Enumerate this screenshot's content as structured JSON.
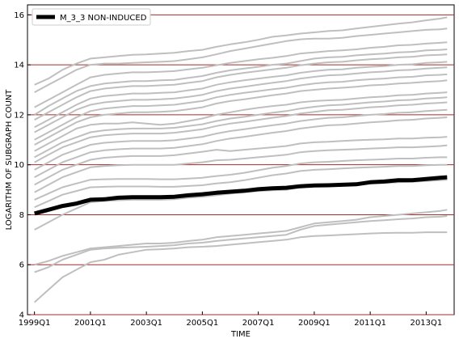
{
  "chart_data": {
    "type": "line",
    "title": "",
    "xlabel": "TIME",
    "ylabel": "LOGARITHM OF SUBGRAPH COUNT",
    "x_ticks": [
      "1999Q1",
      "2001Q1",
      "2003Q1",
      "2005Q1",
      "2007Q1",
      "2009Q1",
      "2011Q1",
      "2013Q1"
    ],
    "x_range": [
      "1999Q1",
      "2013Q4"
    ],
    "y_ticks": [
      4,
      6,
      8,
      10,
      12,
      14,
      16
    ],
    "ylim": [
      4,
      16.4
    ],
    "grid": "horizontal",
    "legend_position": "upper-left",
    "colors": {
      "highlight": "#000000",
      "background": "#bfbfbf",
      "grid": "#a52a2a"
    },
    "x_quarters": [
      "1999Q1",
      "1999Q3",
      "2000Q1",
      "2000Q3",
      "2001Q1",
      "2001Q3",
      "2002Q1",
      "2002Q3",
      "2003Q1",
      "2003Q3",
      "2004Q1",
      "2004Q3",
      "2005Q1",
      "2005Q3",
      "2006Q1",
      "2006Q3",
      "2007Q1",
      "2007Q3",
      "2008Q1",
      "2008Q3",
      "2009Q1",
      "2009Q3",
      "2010Q1",
      "2010Q3",
      "2011Q1",
      "2011Q3",
      "2012Q1",
      "2012Q3",
      "2013Q1",
      "2013Q3",
      "2013Q4"
    ],
    "highlight_series": {
      "name": "M_3_3 NON-INDUCED",
      "values": [
        8.05,
        8.2,
        8.35,
        8.45,
        8.6,
        8.62,
        8.68,
        8.7,
        8.7,
        8.7,
        8.72,
        8.78,
        8.82,
        8.88,
        8.92,
        8.96,
        9.02,
        9.06,
        9.08,
        9.14,
        9.17,
        9.18,
        9.2,
        9.22,
        9.3,
        9.33,
        9.38,
        9.38,
        9.43,
        9.48,
        9.5
      ]
    },
    "background_series": [
      {
        "values": [
          13.2,
          13.45,
          13.8,
          14.05,
          14.25,
          14.3,
          14.35,
          14.4,
          14.42,
          14.45,
          14.48,
          14.55,
          14.6,
          14.72,
          14.82,
          14.9,
          15.0,
          15.12,
          15.18,
          15.25,
          15.3,
          15.35,
          15.38,
          15.45,
          15.52,
          15.58,
          15.65,
          15.7,
          15.78,
          15.85,
          15.9
        ]
      },
      {
        "values": [
          12.9,
          13.2,
          13.5,
          13.8,
          14.0,
          14.05,
          14.05,
          14.08,
          14.1,
          14.12,
          14.15,
          14.22,
          14.3,
          14.42,
          14.55,
          14.65,
          14.75,
          14.85,
          14.95,
          15.02,
          15.05,
          15.05,
          15.08,
          15.15,
          15.2,
          15.25,
          15.3,
          15.35,
          15.4,
          15.42,
          15.45
        ]
      },
      {
        "values": [
          12.3,
          12.6,
          12.9,
          13.2,
          13.5,
          13.6,
          13.65,
          13.7,
          13.7,
          13.72,
          13.75,
          13.82,
          13.88,
          13.98,
          14.08,
          14.15,
          14.22,
          14.28,
          14.35,
          14.45,
          14.5,
          14.55,
          14.58,
          14.62,
          14.68,
          14.72,
          14.78,
          14.8,
          14.85,
          14.88,
          14.9
        ]
      },
      {
        "values": [
          12.0,
          12.35,
          12.65,
          12.95,
          13.15,
          13.25,
          13.3,
          13.35,
          13.35,
          13.38,
          13.4,
          13.48,
          13.55,
          13.68,
          13.78,
          13.85,
          13.92,
          14.0,
          14.05,
          14.15,
          14.25,
          14.3,
          14.32,
          14.38,
          14.42,
          14.45,
          14.5,
          14.52,
          14.58,
          14.6,
          14.62
        ]
      },
      {
        "values": [
          11.8,
          12.1,
          12.4,
          12.7,
          12.95,
          13.05,
          13.1,
          13.15,
          13.15,
          13.18,
          13.2,
          13.28,
          13.35,
          13.5,
          13.6,
          13.68,
          13.75,
          13.82,
          13.88,
          13.98,
          14.05,
          14.1,
          14.12,
          14.18,
          14.22,
          14.25,
          14.3,
          14.32,
          14.38,
          14.4,
          14.42
        ]
      },
      {
        "values": [
          11.5,
          11.8,
          12.1,
          12.4,
          12.65,
          12.75,
          12.8,
          12.85,
          12.85,
          12.88,
          12.9,
          12.98,
          13.05,
          13.2,
          13.3,
          13.38,
          13.45,
          13.52,
          13.58,
          13.68,
          13.75,
          13.8,
          13.82,
          13.88,
          13.92,
          13.95,
          14.0,
          14.02,
          14.08,
          14.1,
          14.12
        ]
      },
      {
        "values": [
          11.3,
          11.6,
          11.9,
          12.2,
          12.4,
          12.5,
          12.55,
          12.6,
          12.6,
          12.62,
          12.65,
          12.72,
          12.8,
          12.95,
          13.05,
          13.12,
          13.2,
          13.28,
          13.35,
          13.45,
          13.52,
          13.58,
          13.6,
          13.65,
          13.7,
          13.73,
          13.78,
          13.8,
          13.85,
          13.88,
          13.9
        ]
      },
      {
        "values": [
          11.0,
          11.3,
          11.6,
          11.9,
          12.15,
          12.25,
          12.3,
          12.35,
          12.35,
          12.38,
          12.4,
          12.48,
          12.55,
          12.7,
          12.8,
          12.88,
          12.95,
          13.02,
          13.08,
          13.18,
          13.25,
          13.3,
          13.32,
          13.38,
          13.42,
          13.45,
          13.5,
          13.52,
          13.58,
          13.6,
          13.62
        ]
      },
      {
        "values": [
          10.8,
          11.1,
          11.4,
          11.7,
          11.9,
          12.0,
          12.05,
          12.1,
          12.1,
          12.12,
          12.15,
          12.22,
          12.3,
          12.45,
          12.55,
          12.62,
          12.7,
          12.78,
          12.85,
          12.95,
          13.0,
          13.05,
          13.08,
          13.12,
          13.18,
          13.2,
          13.25,
          13.28,
          13.32,
          13.35,
          13.38
        ]
      },
      {
        "values": [
          10.55,
          10.85,
          11.15,
          11.45,
          11.6,
          11.65,
          11.65,
          11.7,
          11.65,
          11.6,
          11.65,
          11.75,
          11.85,
          12.0,
          12.1,
          12.2,
          12.28,
          12.35,
          12.4,
          12.5,
          12.55,
          12.58,
          12.6,
          12.65,
          12.7,
          12.73,
          12.78,
          12.8,
          12.85,
          12.88,
          12.9
        ]
      },
      {
        "values": [
          10.3,
          10.6,
          10.9,
          11.1,
          11.3,
          11.38,
          11.42,
          11.45,
          11.45,
          11.45,
          11.48,
          11.55,
          11.62,
          11.75,
          11.85,
          11.92,
          12.0,
          12.08,
          12.15,
          12.25,
          12.32,
          12.38,
          12.4,
          12.45,
          12.5,
          12.53,
          12.58,
          12.6,
          12.65,
          12.68,
          12.7
        ]
      },
      {
        "values": [
          10.1,
          10.4,
          10.7,
          10.9,
          11.1,
          11.18,
          11.22,
          11.25,
          11.25,
          11.25,
          11.28,
          11.35,
          11.42,
          11.55,
          11.65,
          11.72,
          11.8,
          11.88,
          11.95,
          12.05,
          12.12,
          12.18,
          12.2,
          12.25,
          12.3,
          12.33,
          12.38,
          12.4,
          12.45,
          12.48,
          12.5
        ]
      },
      {
        "values": [
          9.8,
          10.1,
          10.4,
          10.6,
          10.8,
          10.88,
          10.92,
          10.95,
          10.95,
          10.95,
          10.98,
          11.05,
          11.12,
          11.25,
          11.35,
          11.42,
          11.5,
          11.58,
          11.65,
          11.75,
          11.82,
          11.88,
          11.9,
          11.95,
          12.0,
          12.03,
          12.08,
          12.1,
          12.15,
          12.18,
          12.2
        ]
      },
      {
        "values": [
          9.5,
          9.8,
          10.1,
          10.3,
          10.5,
          10.58,
          10.62,
          10.65,
          10.65,
          10.65,
          10.68,
          10.75,
          10.82,
          10.95,
          11.05,
          11.12,
          11.2,
          11.28,
          11.35,
          11.45,
          11.52,
          11.58,
          11.6,
          11.65,
          11.7,
          11.73,
          11.78,
          11.8,
          11.85,
          11.88,
          11.9
        ]
      },
      {
        "values": [
          9.2,
          9.5,
          9.8,
          10.0,
          10.2,
          10.28,
          10.32,
          10.35,
          10.35,
          10.35,
          10.38,
          10.45,
          10.52,
          10.6,
          10.55,
          10.6,
          10.65,
          10.7,
          10.75,
          10.85,
          10.9,
          10.92,
          10.95,
          10.98,
          11.0,
          11.02,
          11.05,
          11.05,
          11.08,
          11.1,
          11.12
        ]
      },
      {
        "values": [
          8.9,
          9.2,
          9.5,
          9.7,
          9.9,
          9.95,
          9.98,
          10.0,
          10.0,
          10.0,
          10.0,
          10.05,
          10.1,
          10.18,
          10.2,
          10.25,
          10.3,
          10.35,
          10.4,
          10.5,
          10.55,
          10.58,
          10.6,
          10.62,
          10.65,
          10.67,
          10.7,
          10.7,
          10.72,
          10.75,
          10.78
        ]
      },
      {
        "values": [
          8.6,
          8.85,
          9.1,
          9.25,
          9.4,
          9.42,
          9.43,
          9.43,
          9.43,
          9.42,
          9.42,
          9.45,
          9.48,
          9.55,
          9.6,
          9.68,
          9.78,
          9.88,
          9.95,
          10.05,
          10.1,
          10.12,
          10.15,
          10.18,
          10.2,
          10.22,
          10.25,
          10.25,
          10.28,
          10.3,
          10.3
        ]
      },
      {
        "values": [
          8.3,
          8.55,
          8.8,
          8.95,
          9.1,
          9.12,
          9.13,
          9.13,
          9.13,
          9.12,
          9.12,
          9.15,
          9.18,
          9.25,
          9.3,
          9.38,
          9.48,
          9.58,
          9.65,
          9.75,
          9.8,
          9.82,
          9.85,
          9.88,
          9.9,
          9.92,
          9.95,
          9.95,
          9.98,
          10.0,
          10.0
        ]
      },
      {
        "values": [
          7.4,
          7.7,
          8.0,
          8.25,
          8.5,
          8.55,
          8.58,
          8.6,
          8.6,
          8.6,
          8.62,
          8.68,
          8.72,
          8.78,
          8.85,
          8.9,
          8.95,
          8.98,
          9.0,
          9.1,
          9.15,
          9.18,
          9.2,
          9.22,
          9.25,
          9.27,
          9.3,
          9.32,
          9.35,
          9.38,
          9.4
        ]
      },
      {
        "values": [
          6.0,
          6.15,
          6.35,
          6.5,
          6.65,
          6.7,
          6.75,
          6.8,
          6.85,
          6.85,
          6.88,
          6.95,
          7.0,
          7.1,
          7.15,
          7.2,
          7.25,
          7.3,
          7.35,
          7.5,
          7.65,
          7.7,
          7.75,
          7.8,
          7.9,
          7.95,
          8.0,
          8.05,
          8.1,
          8.15,
          8.2
        ]
      },
      {
        "values": [
          5.7,
          5.9,
          6.2,
          6.4,
          6.6,
          6.65,
          6.68,
          6.7,
          6.72,
          6.75,
          6.78,
          6.85,
          6.88,
          6.95,
          7.0,
          7.05,
          7.1,
          7.15,
          7.2,
          7.4,
          7.55,
          7.6,
          7.65,
          7.7,
          7.75,
          7.78,
          7.82,
          7.85,
          7.9,
          7.92,
          7.95
        ]
      },
      {
        "values": [
          4.5,
          5.0,
          5.5,
          5.8,
          6.1,
          6.2,
          6.4,
          6.5,
          6.6,
          6.62,
          6.65,
          6.7,
          6.72,
          6.75,
          6.8,
          6.85,
          6.9,
          6.95,
          7.0,
          7.1,
          7.15,
          7.17,
          7.2,
          7.22,
          7.25,
          7.27,
          7.28,
          7.28,
          7.3,
          7.3,
          7.3
        ]
      }
    ]
  }
}
